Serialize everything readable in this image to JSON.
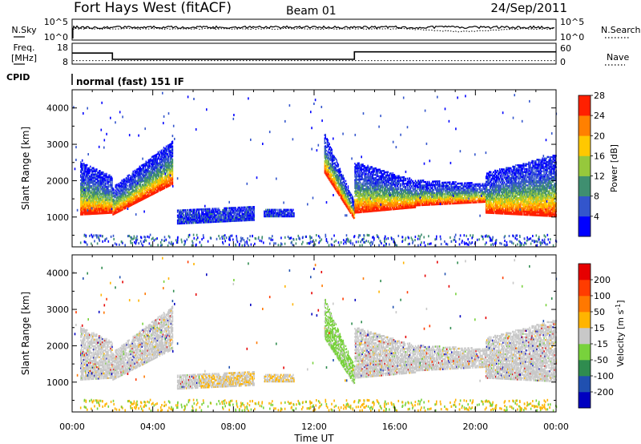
{
  "header": {
    "title": "Fort Hays West (fitACF)",
    "beam": "Beam 01",
    "date": "24/Sep/2011"
  },
  "nsky_panel": {
    "left_label": "N.Sky",
    "left_ticks": [
      "10^5",
      "10^0"
    ],
    "right_ticks": [
      "10^5",
      "10^0"
    ],
    "right_label": "N.Search"
  },
  "freq_panel": {
    "left_label_line1": "Freq.",
    "left_label_line2": "[MHz]",
    "left_ticks": [
      "18",
      "8"
    ],
    "right_ticks": [
      "60",
      "0"
    ],
    "right_label": "Nave",
    "cpid_label": "CPID",
    "freq_series": [
      {
        "t": 0,
        "f": 13.3
      },
      {
        "t": 2.0,
        "f": 13.3
      },
      {
        "t": 2.0,
        "f": 10.3
      },
      {
        "t": 14.0,
        "f": 10.3
      },
      {
        "t": 14.0,
        "f": 13.9
      },
      {
        "t": 24,
        "f": 13.9
      }
    ],
    "nave_level": 10
  },
  "cpid_text": "normal (fast) 151 IF",
  "chart_data": [
    {
      "type": "heatmap",
      "name": "power",
      "ylabel": "Slant Range [km]",
      "yticks": [
        "1000",
        "2000",
        "3000",
        "4000"
      ],
      "ylim": [
        180,
        4500
      ],
      "xlim": [
        0,
        24
      ],
      "colorbar_label": "Power [dB]",
      "colorbar_ticks": [
        "4",
        "8",
        "12",
        "16",
        "20",
        "24",
        "28"
      ],
      "colorbar_colors": [
        "#0000ff",
        "#3355cc",
        "#3f8f70",
        "#96c83c",
        "#ffc800",
        "#ff8000",
        "#ff2000"
      ],
      "echo_regions": [
        {
          "t0": 0.4,
          "t1": 2.0,
          "r0": 1050,
          "r1": 2500,
          "r0_end": 1100,
          "r1_end": 2100
        },
        {
          "t0": 2.0,
          "t1": 5.0,
          "r0": 1050,
          "r1": 1800,
          "r0_end": 1900,
          "r1_end": 3100
        },
        {
          "t0": 5.2,
          "t1": 9.0,
          "r0": 800,
          "r1": 1200,
          "r0_end": 900,
          "r1_end": 1300
        },
        {
          "t0": 9.5,
          "t1": 11.0,
          "r0": 1000,
          "r1": 1200,
          "r0_end": 1000,
          "r1_end": 1200
        },
        {
          "t0": 12.5,
          "t1": 14.0,
          "r0": 2200,
          "r1": 3300,
          "r0_end": 900,
          "r1_end": 1400
        },
        {
          "t0": 14.0,
          "t1": 17.0,
          "r0": 1100,
          "r1": 2500,
          "r0_end": 1250,
          "r1_end": 2000
        },
        {
          "t0": 17.0,
          "t1": 20.5,
          "r0": 1300,
          "r1": 2000,
          "r0_end": 1400,
          "r1_end": 1900
        },
        {
          "t0": 20.5,
          "t1": 24.0,
          "r0": 1100,
          "r1": 2200,
          "r0_end": 1000,
          "r1_end": 2700
        }
      ]
    },
    {
      "type": "heatmap",
      "name": "velocity",
      "ylabel": "Slant Range [km]",
      "yticks": [
        "1000",
        "2000",
        "3000",
        "4000"
      ],
      "ylim": [
        180,
        4500
      ],
      "xlim": [
        0,
        24
      ],
      "colorbar_label": "Velocity [m s^-1]",
      "colorbar_ticks": [
        "200",
        "100",
        "50",
        "15",
        "-15",
        "-50",
        "-100",
        "-200"
      ],
      "colorbar_colors": [
        "#0000c0",
        "#2050b0",
        "#2f8c4f",
        "#78d23c",
        "#c8c8c8",
        "#ffb400",
        "#ff7800",
        "#ff3c00",
        "#e60000"
      ],
      "xticks": [
        "00:00",
        "04:00",
        "08:00",
        "12:00",
        "16:00",
        "20:00",
        "00:00"
      ],
      "xlabel": "Time UT"
    }
  ]
}
